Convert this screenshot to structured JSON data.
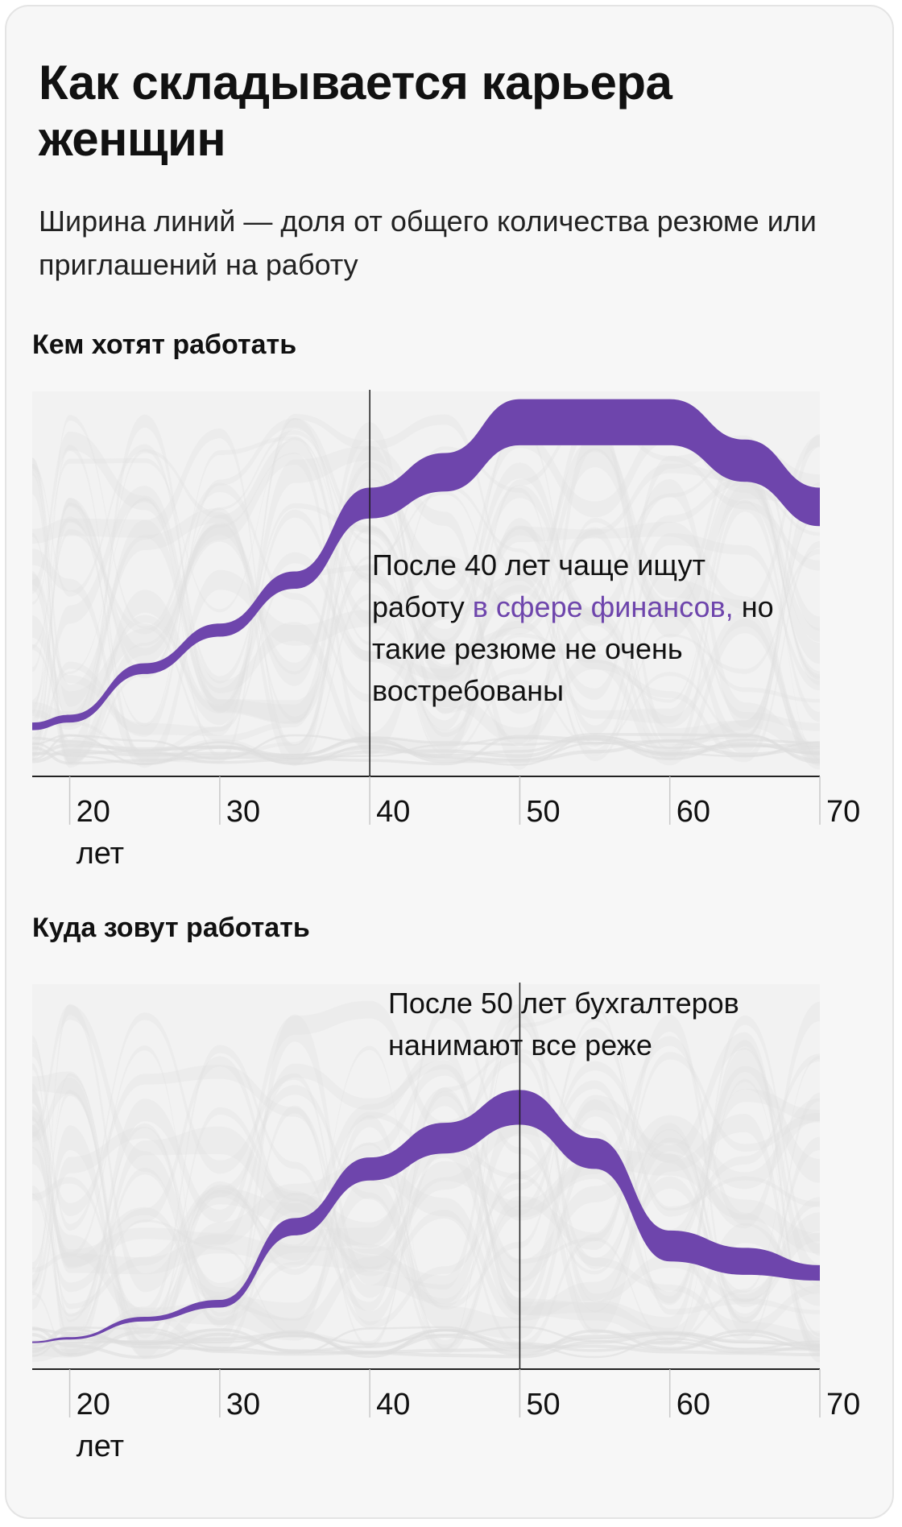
{
  "title": "Как складывается карьера женщин",
  "subtitle": "Ширина линий — доля от общего количества резюме или приглашений на работу",
  "colors": {
    "highlight": "#6e45ac",
    "background_flows": "#e2e2e2",
    "axis": "#222222",
    "card": "#f7f7f7"
  },
  "chart_data": [
    {
      "type": "area",
      "title": "Кем хотят работать",
      "x_ticks": [
        "20",
        "30",
        "40",
        "50",
        "60",
        "70"
      ],
      "x_unit": "лет",
      "xlim": [
        17.5,
        70
      ],
      "highlight_series": {
        "name": "в сфере финансов",
        "x": [
          17.5,
          20,
          25,
          30,
          35,
          40,
          45,
          50,
          55,
          60,
          65,
          70
        ],
        "center": [
          0.13,
          0.15,
          0.28,
          0.38,
          0.51,
          0.71,
          0.79,
          0.92,
          0.92,
          0.92,
          0.82,
          0.7
        ],
        "width": [
          0.02,
          0.02,
          0.028,
          0.034,
          0.045,
          0.08,
          0.1,
          0.12,
          0.12,
          0.12,
          0.11,
          0.1
        ]
      },
      "reference_line_x": 40,
      "annotation": {
        "before": "После 40 лет чаще ищут работу ",
        "highlight": "в сфере финансов,",
        "after": " но такие резюме не очень востребованы"
      }
    },
    {
      "type": "area",
      "title": "Куда зовут работать",
      "x_ticks": [
        "20",
        "30",
        "40",
        "50",
        "60",
        "70"
      ],
      "x_unit": "лет",
      "xlim": [
        17.5,
        70
      ],
      "highlight_series": {
        "name": "бухгалтеры",
        "x": [
          17.5,
          20,
          25,
          30,
          35,
          40,
          45,
          50,
          55,
          60,
          65,
          70
        ],
        "center": [
          0.07,
          0.08,
          0.13,
          0.17,
          0.37,
          0.52,
          0.6,
          0.68,
          0.56,
          0.32,
          0.28,
          0.25
        ],
        "width": [
          0.004,
          0.006,
          0.012,
          0.02,
          0.045,
          0.06,
          0.08,
          0.09,
          0.08,
          0.08,
          0.07,
          0.04
        ]
      },
      "reference_line_x": 50,
      "annotation": {
        "text": "После 50 лет бухгалтеров нанимают все реже"
      }
    }
  ]
}
